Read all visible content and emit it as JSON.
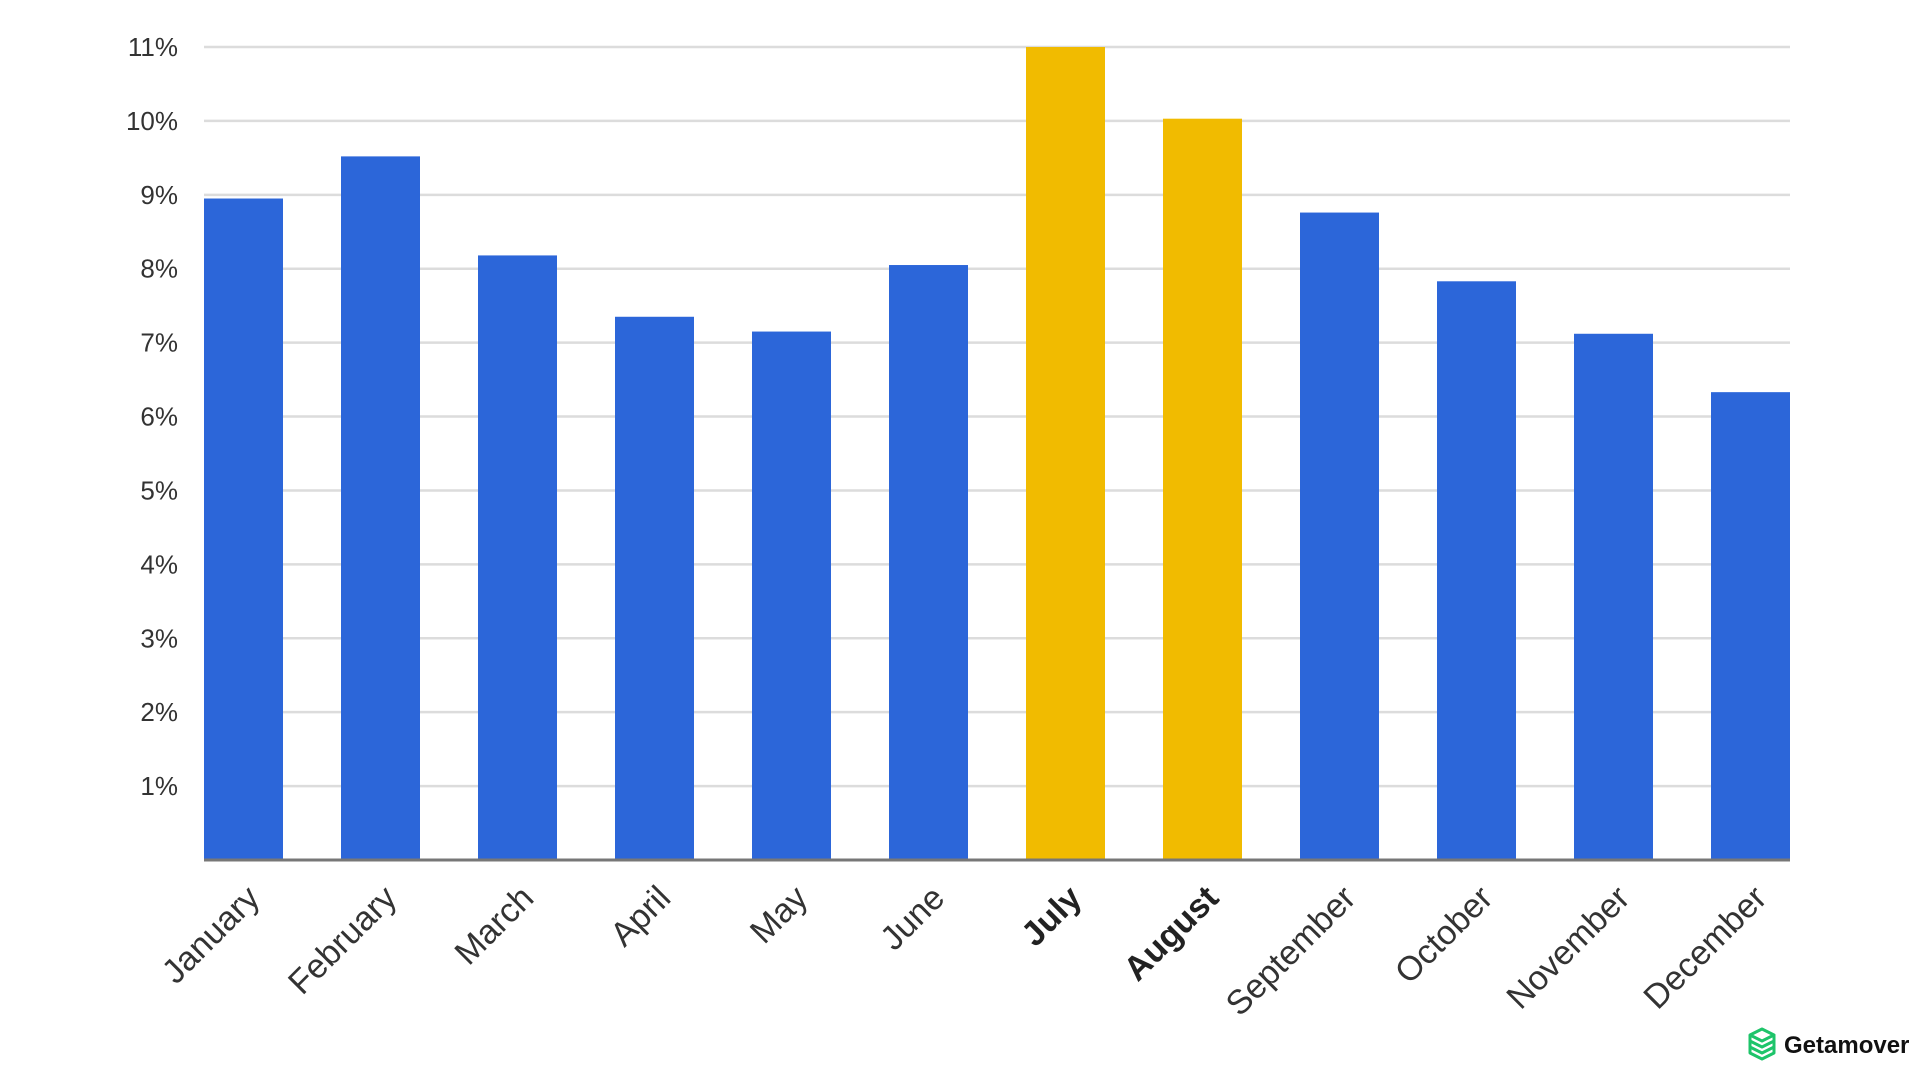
{
  "chart_data": {
    "type": "bar",
    "title": "",
    "xlabel": "",
    "ylabel": "",
    "categories": [
      "January",
      "February",
      "March",
      "April",
      "May",
      "June",
      "July",
      "August",
      "September",
      "October",
      "November",
      "December"
    ],
    "values": [
      8.95,
      9.52,
      8.18,
      7.35,
      7.15,
      8.05,
      11.0,
      10.03,
      8.76,
      7.83,
      7.12,
      6.33
    ],
    "highlighted": [
      "July",
      "August"
    ],
    "ylim": [
      0,
      11
    ],
    "yticks": [
      1,
      2,
      3,
      4,
      5,
      6,
      7,
      8,
      9,
      10,
      11
    ],
    "ytick_labels": [
      "1%",
      "2%",
      "3%",
      "4%",
      "5%",
      "6%",
      "7%",
      "8%",
      "9%",
      "10%",
      "11%"
    ],
    "grid": true,
    "colors": {
      "bar": "#2c66d9",
      "bar_highlight": "#f1bb00",
      "grid": "#dcdcdc",
      "axis": "#777777"
    }
  },
  "brand": {
    "name": "Getamover",
    "icon": "box-stack-icon",
    "color": "#1ec46a"
  }
}
